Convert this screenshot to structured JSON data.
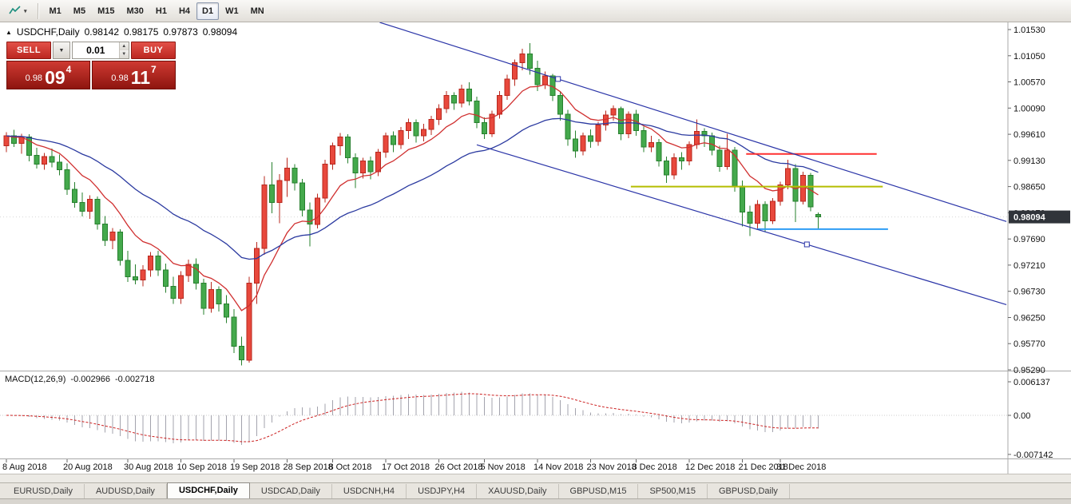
{
  "toolbar": {
    "timeframes": [
      "M1",
      "M5",
      "M15",
      "M30",
      "H1",
      "H4",
      "D1",
      "W1",
      "MN"
    ],
    "active_timeframe": "D1"
  },
  "chart": {
    "ohlc_line": {
      "symbol": "USDCHF,Daily",
      "open": "0.98142",
      "high": "0.98175",
      "low": "0.97873",
      "close": "0.98094"
    },
    "current_price_badge": "0.98094",
    "macd_label": {
      "name": "MACD(12,26,9)",
      "main": "-0.002966",
      "signal": "-0.002718"
    }
  },
  "trade_panel": {
    "sell_label": "SELL",
    "buy_label": "BUY",
    "volume": "0.01",
    "sell_price": {
      "prefix": "0.98",
      "big": "09",
      "sup": "4"
    },
    "buy_price": {
      "prefix": "0.98",
      "big": "11",
      "sup": "7"
    }
  },
  "tabs": {
    "items": [
      "EURUSD,Daily",
      "AUDUSD,Daily",
      "USDCHF,Daily",
      "USDCAD,Daily",
      "USDCNH,H4",
      "USDJPY,H4",
      "XAUUSD,Daily",
      "GBPUSD,M15",
      "SP500,M15",
      "GBPUSD,Daily"
    ],
    "active": "USDCHF,Daily"
  },
  "chart_data": {
    "type": "candlestick",
    "symbol": "USDCHF",
    "timeframe": "Daily",
    "last_ohlc": {
      "open": 0.98142,
      "high": 0.98175,
      "low": 0.97873,
      "close": 0.98094
    },
    "current_price": 0.98094,
    "price_axis_ticks": [
      "1.01530",
      "1.01050",
      "1.00570",
      "1.00090",
      "0.99610",
      "0.99130",
      "0.98650",
      "0.98170",
      "0.97690",
      "0.97210",
      "0.96730",
      "0.96250",
      "0.95770",
      "0.95290"
    ],
    "time_axis_ticks": [
      {
        "label": "8 Aug 2018",
        "i": 0
      },
      {
        "label": "20 Aug 2018",
        "i": 8
      },
      {
        "label": "30 Aug 2018",
        "i": 16
      },
      {
        "label": "10 Sep 2018",
        "i": 23
      },
      {
        "label": "19 Sep 2018",
        "i": 30
      },
      {
        "label": "28 Sep 2018",
        "i": 37
      },
      {
        "label": "8 Oct 2018",
        "i": 43
      },
      {
        "label": "17 Oct 2018",
        "i": 50
      },
      {
        "label": "26 Oct 2018",
        "i": 57
      },
      {
        "label": "5 Nov 2018",
        "i": 63
      },
      {
        "label": "14 Nov 2018",
        "i": 70
      },
      {
        "label": "23 Nov 2018",
        "i": 77
      },
      {
        "label": "3 Dec 2018",
        "i": 83
      },
      {
        "label": "12 Dec 2018",
        "i": 90
      },
      {
        "label": "21 Dec 2018",
        "i": 97
      },
      {
        "label": "31 Dec 2018",
        "i": 102
      }
    ],
    "candle_colors": {
      "bull": "#e8483c",
      "bull_border": "#b8281e",
      "bear": "#44a94c",
      "bear_border": "#27802e"
    },
    "moving_averages": [
      {
        "period": 10,
        "method": "ema",
        "color": "#d03030"
      },
      {
        "period": 30,
        "method": "ema",
        "color": "#2b3aa0"
      }
    ],
    "macd": {
      "fast": 12,
      "slow": 26,
      "signal_period": 9,
      "histogram_color": "#a3a3ad",
      "signal_color": "#cc2020",
      "axis_labels": [
        "0.006137",
        "0.00",
        "-0.007142"
      ],
      "current_main": -0.002966,
      "current_signal": -0.002718,
      "display_scale": 0.78
    },
    "horizontal_lines": [
      {
        "price": 0.9925,
        "i1": 97.5,
        "i2": 114.7,
        "color": "#ff3030"
      },
      {
        "price": 0.9865,
        "i1": 82.3,
        "i2": 115.5,
        "color": "#b5bd00"
      },
      {
        "price": 0.9787,
        "i1": 98.9,
        "i2": 116.2,
        "color": "#2e9df5"
      }
    ],
    "channel_lines": [
      {
        "i1": 49.2,
        "p1": 1.01662,
        "i2": 131.8,
        "p2": 0.9801,
        "handle_i": 72.7,
        "color": "#2b35a8"
      },
      {
        "i1": 62.0,
        "p1": 0.99417,
        "i2": 131.8,
        "p2": 0.96485,
        "handle_i": 105.5,
        "color": "#2b35a8"
      }
    ],
    "candles": [
      [
        0.994,
        0.9965,
        0.9928,
        0.9958
      ],
      [
        0.9958,
        0.9969,
        0.9938,
        0.9944
      ],
      [
        0.9944,
        0.9962,
        0.9925,
        0.9956
      ],
      [
        0.9956,
        0.9961,
        0.9911,
        0.9922
      ],
      [
        0.9922,
        0.9936,
        0.9898,
        0.9906
      ],
      [
        0.9906,
        0.9927,
        0.9896,
        0.992
      ],
      [
        0.992,
        0.9935,
        0.99,
        0.991
      ],
      [
        0.991,
        0.9924,
        0.9886,
        0.9896
      ],
      [
        0.9896,
        0.9908,
        0.985,
        0.986
      ],
      [
        0.986,
        0.9873,
        0.9826,
        0.9836
      ],
      [
        0.9836,
        0.9854,
        0.981,
        0.982
      ],
      [
        0.982,
        0.9849,
        0.9806,
        0.9842
      ],
      [
        0.9842,
        0.9847,
        0.9786,
        0.9796
      ],
      [
        0.9796,
        0.9811,
        0.9756,
        0.9766
      ],
      [
        0.9766,
        0.9789,
        0.975,
        0.9782
      ],
      [
        0.9782,
        0.9787,
        0.972,
        0.973
      ],
      [
        0.973,
        0.9747,
        0.969,
        0.97
      ],
      [
        0.97,
        0.9722,
        0.9686,
        0.9694
      ],
      [
        0.9694,
        0.9721,
        0.9682,
        0.9712
      ],
      [
        0.9712,
        0.9745,
        0.97,
        0.9738
      ],
      [
        0.9738,
        0.9747,
        0.9701,
        0.9712
      ],
      [
        0.9712,
        0.9724,
        0.967,
        0.9682
      ],
      [
        0.9682,
        0.97,
        0.965,
        0.966
      ],
      [
        0.966,
        0.971,
        0.965,
        0.9702
      ],
      [
        0.9702,
        0.9731,
        0.969,
        0.9722
      ],
      [
        0.9722,
        0.9733,
        0.9676,
        0.9688
      ],
      [
        0.9688,
        0.9696,
        0.963,
        0.9642
      ],
      [
        0.9642,
        0.969,
        0.9634,
        0.9676
      ],
      [
        0.9676,
        0.9682,
        0.9636,
        0.965
      ],
      [
        0.965,
        0.9666,
        0.9615,
        0.9626
      ],
      [
        0.9626,
        0.964,
        0.956,
        0.9572
      ],
      [
        0.9572,
        0.959,
        0.9537,
        0.9547
      ],
      [
        0.9547,
        0.97,
        0.9542,
        0.9688
      ],
      [
        0.9688,
        0.9763,
        0.965,
        0.9752
      ],
      [
        0.9752,
        0.9884,
        0.974,
        0.9868
      ],
      [
        0.9868,
        0.991,
        0.9816,
        0.9836
      ],
      [
        0.9836,
        0.9888,
        0.9798,
        0.9876
      ],
      [
        0.9876,
        0.9918,
        0.9846,
        0.9899
      ],
      [
        0.9899,
        0.9906,
        0.9858,
        0.9872
      ],
      [
        0.9872,
        0.9879,
        0.981,
        0.9822
      ],
      [
        0.9822,
        0.9836,
        0.9755,
        0.9796
      ],
      [
        0.9796,
        0.9852,
        0.9788,
        0.9844
      ],
      [
        0.9844,
        0.9914,
        0.9836,
        0.9906
      ],
      [
        0.9906,
        0.9946,
        0.9896,
        0.994
      ],
      [
        0.994,
        0.9963,
        0.9922,
        0.9956
      ],
      [
        0.9956,
        0.9961,
        0.9908,
        0.9918
      ],
      [
        0.9918,
        0.9926,
        0.9862,
        0.989
      ],
      [
        0.989,
        0.9918,
        0.988,
        0.9912
      ],
      [
        0.9912,
        0.992,
        0.9878,
        0.9892
      ],
      [
        0.9892,
        0.9934,
        0.9884,
        0.9928
      ],
      [
        0.9928,
        0.9964,
        0.9918,
        0.9958
      ],
      [
        0.9958,
        0.9966,
        0.9928,
        0.9942
      ],
      [
        0.9942,
        0.9974,
        0.9934,
        0.9968
      ],
      [
        0.9968,
        0.999,
        0.9952,
        0.9982
      ],
      [
        0.9982,
        0.9988,
        0.9946,
        0.9958
      ],
      [
        0.9958,
        0.998,
        0.9948,
        0.997
      ],
      [
        0.997,
        0.9995,
        0.996,
        0.9988
      ],
      [
        0.9988,
        1.0016,
        0.9978,
        1.0008
      ],
      [
        1.0008,
        1.004,
        1.0,
        1.0032
      ],
      [
        1.0032,
        1.0038,
        1.0006,
        1.0018
      ],
      [
        1.0018,
        1.0052,
        1.001,
        1.0044
      ],
      [
        1.0044,
        1.0056,
        1.0014,
        1.0022
      ],
      [
        1.0022,
        1.003,
        0.9972,
        0.9982
      ],
      [
        0.9982,
        0.9992,
        0.9952,
        0.9962
      ],
      [
        0.9962,
        1.0004,
        0.9956,
        0.9998
      ],
      [
        0.9998,
        1.004,
        0.999,
        1.0032
      ],
      [
        1.0032,
        1.007,
        1.0024,
        1.0062
      ],
      [
        1.0062,
        1.0098,
        1.005,
        1.0092
      ],
      [
        1.0092,
        1.0118,
        1.0078,
        1.0108
      ],
      [
        1.0108,
        1.0128,
        1.007,
        1.0082
      ],
      [
        1.0082,
        1.0096,
        1.004,
        1.0052
      ],
      [
        1.0052,
        1.0076,
        1.0044,
        1.0068
      ],
      [
        1.0068,
        1.0072,
        1.0022,
        1.0032
      ],
      [
        1.0032,
        1.004,
        0.9986,
        0.9998
      ],
      [
        0.9998,
        1.0006,
        0.994,
        0.9952
      ],
      [
        0.9952,
        0.9968,
        0.9918,
        0.993
      ],
      [
        0.993,
        0.9964,
        0.9922,
        0.9958
      ],
      [
        0.9958,
        0.997,
        0.9936,
        0.9948
      ],
      [
        0.9948,
        0.9984,
        0.994,
        0.9978
      ],
      [
        0.9978,
        1.0004,
        0.9968,
        0.9996
      ],
      [
        0.9996,
        1.0014,
        0.9986,
        1.0008
      ],
      [
        1.0008,
        1.0012,
        0.995,
        0.9962
      ],
      [
        0.9962,
        1.0003,
        0.9954,
        0.9998
      ],
      [
        0.9998,
        1.0006,
        0.9958,
        0.9968
      ],
      [
        0.9968,
        0.9975,
        0.9928,
        0.9938
      ],
      [
        0.9938,
        0.9958,
        0.9928,
        0.9946
      ],
      [
        0.9946,
        0.9952,
        0.9902,
        0.9912
      ],
      [
        0.9912,
        0.992,
        0.9872,
        0.9886
      ],
      [
        0.9886,
        0.9926,
        0.9878,
        0.9918
      ],
      [
        0.9918,
        0.9928,
        0.9896,
        0.9912
      ],
      [
        0.9912,
        0.9948,
        0.9904,
        0.9942
      ],
      [
        0.9942,
        0.9988,
        0.9934,
        0.9966
      ],
      [
        0.9966,
        0.9972,
        0.9938,
        0.9958
      ],
      [
        0.9958,
        0.9964,
        0.9922,
        0.9932
      ],
      [
        0.9932,
        0.994,
        0.9892,
        0.9902
      ],
      [
        0.9902,
        0.9962,
        0.9896,
        0.9932
      ],
      [
        0.9932,
        0.9938,
        0.9856,
        0.9866
      ],
      [
        0.9866,
        0.9876,
        0.9792,
        0.9818
      ],
      [
        0.9818,
        0.983,
        0.9774,
        0.9798
      ],
      [
        0.9798,
        0.984,
        0.9788,
        0.9832
      ],
      [
        0.9832,
        0.9838,
        0.9782,
        0.9802
      ],
      [
        0.9802,
        0.9844,
        0.9796,
        0.9838
      ],
      [
        0.9838,
        0.9874,
        0.983,
        0.9868
      ],
      [
        0.9868,
        0.9914,
        0.986,
        0.9898
      ],
      [
        0.9898,
        0.9906,
        0.98,
        0.9838
      ],
      [
        0.9838,
        0.9892,
        0.9832,
        0.9886
      ],
      [
        0.9886,
        0.989,
        0.982,
        0.9828
      ],
      [
        0.98142,
        0.98175,
        0.97873,
        0.98094
      ]
    ]
  }
}
